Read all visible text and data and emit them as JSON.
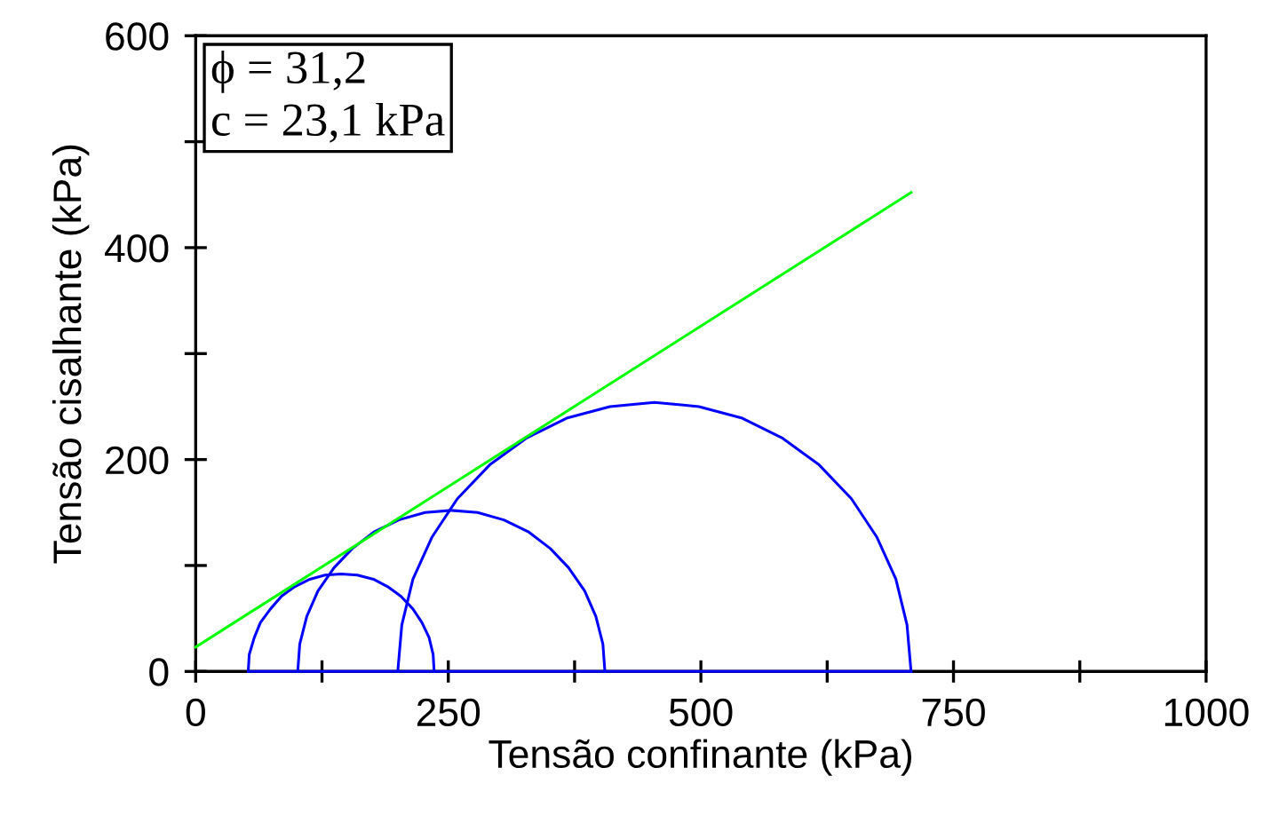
{
  "chart_data": {
    "type": "line",
    "xlabel": "Tensão confinante (kPa)",
    "ylabel": "Tensão cisalhante (kPa)",
    "annotations": [
      "ϕ = 31,2",
      "c = 23,1 kPa"
    ],
    "xlim": [
      0,
      1000
    ],
    "ylim": [
      0,
      600
    ],
    "xticks": [
      0,
      {
        "value": 125,
        "label": null
      },
      250,
      {
        "value": 375,
        "label": null
      },
      500,
      {
        "value": 625,
        "label": null
      },
      750,
      {
        "value": 875,
        "label": null
      },
      1000
    ],
    "yticks": [
      0,
      {
        "value": 100,
        "label": null
      },
      200,
      {
        "value": 300,
        "label": null
      },
      400,
      {
        "value": 500,
        "label": null
      },
      600
    ],
    "marker": "none",
    "line_style": "solid",
    "grid": false,
    "series": [
      {
        "color": "#0000ff",
        "x": [
          52,
          53,
          58,
          64,
          74,
          85,
          98,
          113,
          128,
          144,
          160,
          176,
          190,
          203,
          215,
          224,
          231,
          235,
          236
        ],
        "values": [
          0,
          16,
          32,
          46,
          59,
          71,
          80,
          87,
          91,
          92,
          91,
          87,
          80,
          71,
          59,
          46,
          32,
          16,
          0
        ]
      },
      {
        "color": "#0000ff",
        "x": [
          101,
          103,
          110,
          121,
          137,
          155,
          177,
          201,
          227,
          253,
          279,
          305,
          329,
          351,
          369,
          385,
          396,
          403,
          405
        ],
        "values": [
          0,
          26,
          52,
          76,
          98,
          116,
          132,
          143,
          150,
          152,
          150,
          143,
          132,
          116,
          98,
          76,
          52,
          26,
          0
        ]
      },
      {
        "color": "#0000ff",
        "x": [
          200,
          204,
          215,
          234,
          259,
          291,
          327,
          367,
          410,
          454,
          498,
          541,
          581,
          617,
          649,
          674,
          693,
          704,
          708
        ],
        "values": [
          0,
          44,
          87,
          127,
          163,
          195,
          220,
          239,
          250,
          254,
          250,
          239,
          220,
          195,
          163,
          127,
          87,
          44,
          0
        ]
      },
      {
        "color": "#0000ff",
        "x": [
          52,
          708
        ],
        "values": [
          0,
          0
        ]
      },
      {
        "color": "#00ff00",
        "x": [
          0,
          708
        ],
        "values": [
          23,
          452
        ]
      }
    ]
  }
}
